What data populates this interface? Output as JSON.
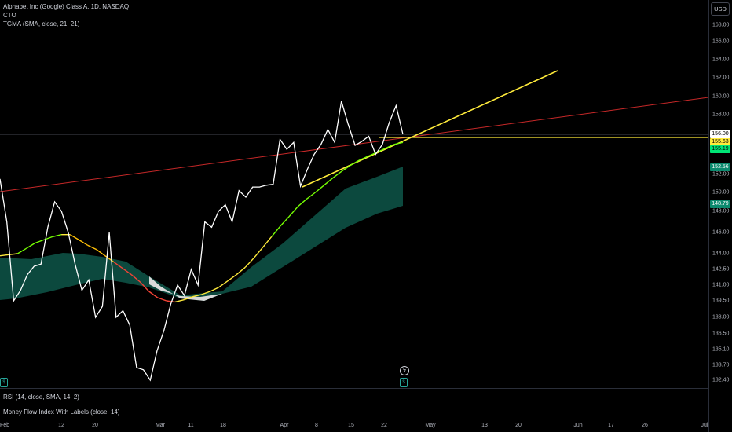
{
  "legend": {
    "symbol": "Alphabet Inc (Google) Class A, 1D, NASDAQ",
    "indicator1": "CTO",
    "indicator2": "TGMA (SMA, close, 21, 21)"
  },
  "currency": "USD",
  "panes": {
    "rsi": "RSI (14, close, SMA, 14, 2)",
    "mfi": "Money Flow Index With Labels (close, 14)"
  },
  "price_axis": {
    "ticks": [
      "168.00",
      "166.00",
      "164.00",
      "162.00",
      "160.00",
      "158.00",
      "156.00",
      "152.00",
      "150.00",
      "148.00",
      "146.00",
      "144.00",
      "142.50",
      "141.00",
      "139.50",
      "138.00",
      "136.50",
      "135.10",
      "133.70",
      "132.40"
    ],
    "badges": [
      {
        "label": "156.00",
        "bg": "#ffffff",
        "fg": "#000000"
      },
      {
        "label": "155.63",
        "bg": "#ffeb3b",
        "fg": "#000000"
      },
      {
        "label": "155.19",
        "bg": "#00e676",
        "fg": "#000000"
      },
      {
        "label": "152.56",
        "bg": "#0b8a6e",
        "fg": "#ffffff"
      },
      {
        "label": "148.79",
        "bg": "#0b8a6e",
        "fg": "#ffffff"
      }
    ]
  },
  "time_axis": {
    "ticks": [
      "Feb",
      "12",
      "20",
      "Mar",
      "11",
      "18",
      "Apr",
      "8",
      "15",
      "22",
      "May",
      "13",
      "20",
      "Jun",
      "17",
      "26",
      "Jul"
    ]
  },
  "chart_data": {
    "type": "line",
    "symbol": "Alphabet Inc (Google) Class A",
    "interval": "1D",
    "series": [
      {
        "name": "close",
        "color": "#ffffff",
        "values": [
          151.5,
          147.0,
          139.5,
          140.5,
          142.0,
          142.8,
          143.0,
          146.5,
          149.0,
          148.0,
          146.0,
          143.0,
          140.5,
          141.5,
          138.0,
          139.0,
          146.0,
          138.0,
          138.6,
          137.3,
          133.5,
          133.3,
          132.4,
          135.0,
          136.8,
          139.2,
          141.0,
          140.0,
          142.5,
          141.0,
          147.0,
          146.5,
          148.0,
          148.7,
          147.0,
          150.2,
          149.5,
          150.6,
          150.6,
          150.8,
          150.9,
          155.5,
          154.5,
          155.2,
          150.7,
          152.5,
          154.0,
          155.0,
          156.5,
          155.2,
          159.5,
          157.0,
          154.9,
          155.3,
          155.8,
          154.0,
          155.0,
          157.2,
          159.0,
          156.0
        ]
      },
      {
        "name": "TGMA",
        "color": "#76ff03",
        "values": [
          143.8,
          143.9,
          144.0,
          144.5,
          145.0,
          145.3,
          145.6,
          145.8,
          145.8,
          145.3,
          144.8,
          144.4,
          143.8,
          143.2,
          142.6,
          142.0,
          141.3,
          140.4,
          139.8,
          139.5,
          139.4,
          139.6,
          139.9,
          140.1,
          140.4,
          140.8,
          141.4,
          142.0,
          142.7,
          143.6,
          144.6,
          145.6,
          146.6,
          147.5,
          148.5,
          149.3,
          150.0,
          150.8,
          151.6,
          152.3,
          152.9,
          153.4,
          153.8,
          154.2,
          154.6,
          155.0,
          155.19
        ]
      }
    ],
    "cloud": {
      "upper_last": 152.56,
      "lower_last": 148.79
    },
    "trendlines": [
      {
        "color": "#c62828",
        "type": "ray"
      },
      {
        "color": "#ffeb3b",
        "type": "trend"
      },
      {
        "color": "#ffeb3b",
        "type": "horizontal",
        "value": 155.63
      }
    ],
    "current_price": 156.0
  }
}
